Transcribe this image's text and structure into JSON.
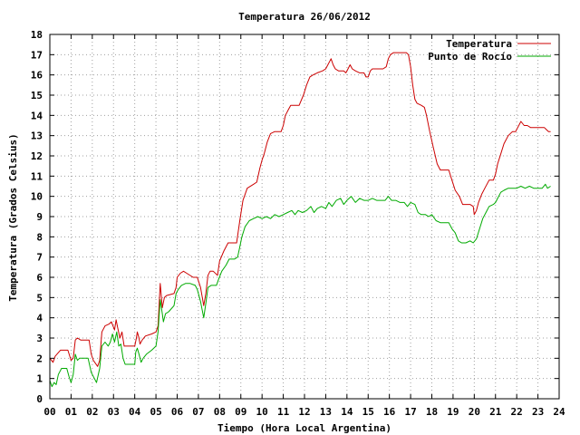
{
  "chart_data": {
    "type": "line",
    "title": "Temperatura 26/06/2012",
    "xlabel": "Tiempo (Hora Local Argentina)",
    "ylabel": "Temperatura (Grados Celsius)",
    "xlim": [
      0,
      24
    ],
    "ylim": [
      0,
      18
    ],
    "x_ticks": [
      "00",
      "01",
      "02",
      "03",
      "04",
      "05",
      "06",
      "07",
      "08",
      "09",
      "10",
      "11",
      "12",
      "13",
      "14",
      "15",
      "16",
      "17",
      "18",
      "19",
      "20",
      "21",
      "22",
      "23",
      "24"
    ],
    "y_ticks": [
      "0",
      "1",
      "2",
      "3",
      "4",
      "5",
      "6",
      "7",
      "8",
      "9",
      "10",
      "11",
      "12",
      "13",
      "14",
      "15",
      "16",
      "17",
      "18"
    ],
    "grid": true,
    "legend_position": "top-right",
    "series": [
      {
        "name": "Temperatura",
        "color": "#cc0000",
        "points": [
          [
            0.0,
            2.0
          ],
          [
            0.15,
            1.8
          ],
          [
            0.25,
            2.1
          ],
          [
            0.5,
            2.4
          ],
          [
            0.85,
            2.4
          ],
          [
            1.0,
            1.9
          ],
          [
            1.1,
            2.0
          ],
          [
            1.2,
            2.9
          ],
          [
            1.3,
            3.0
          ],
          [
            1.45,
            2.9
          ],
          [
            1.85,
            2.9
          ],
          [
            1.95,
            2.2
          ],
          [
            2.05,
            1.9
          ],
          [
            2.25,
            1.6
          ],
          [
            2.35,
            1.9
          ],
          [
            2.45,
            3.3
          ],
          [
            2.6,
            3.6
          ],
          [
            2.8,
            3.7
          ],
          [
            2.9,
            3.8
          ],
          [
            3.05,
            3.4
          ],
          [
            3.12,
            3.9
          ],
          [
            3.2,
            3.5
          ],
          [
            3.3,
            3.0
          ],
          [
            3.4,
            3.3
          ],
          [
            3.5,
            2.6
          ],
          [
            3.75,
            2.6
          ],
          [
            4.0,
            2.6
          ],
          [
            4.08,
            3.0
          ],
          [
            4.12,
            3.3
          ],
          [
            4.2,
            3.0
          ],
          [
            4.25,
            2.7
          ],
          [
            4.35,
            2.9
          ],
          [
            4.5,
            3.1
          ],
          [
            4.8,
            3.2
          ],
          [
            5.0,
            3.3
          ],
          [
            5.1,
            3.6
          ],
          [
            5.2,
            5.7
          ],
          [
            5.3,
            4.5
          ],
          [
            5.4,
            5.0
          ],
          [
            5.5,
            5.1
          ],
          [
            5.85,
            5.2
          ],
          [
            5.95,
            5.5
          ],
          [
            6.0,
            6.0
          ],
          [
            6.15,
            6.2
          ],
          [
            6.3,
            6.3
          ],
          [
            6.45,
            6.2
          ],
          [
            6.75,
            6.0
          ],
          [
            6.95,
            6.0
          ],
          [
            7.1,
            5.5
          ],
          [
            7.25,
            4.6
          ],
          [
            7.35,
            5.2
          ],
          [
            7.45,
            6.1
          ],
          [
            7.55,
            6.3
          ],
          [
            7.7,
            6.3
          ],
          [
            7.9,
            6.1
          ],
          [
            8.0,
            6.8
          ],
          [
            8.2,
            7.3
          ],
          [
            8.4,
            7.7
          ],
          [
            8.6,
            7.7
          ],
          [
            8.8,
            7.7
          ],
          [
            8.95,
            8.8
          ],
          [
            9.1,
            9.8
          ],
          [
            9.3,
            10.4
          ],
          [
            9.6,
            10.6
          ],
          [
            9.75,
            10.7
          ],
          [
            9.9,
            11.4
          ],
          [
            10.0,
            11.8
          ],
          [
            10.1,
            12.1
          ],
          [
            10.25,
            12.7
          ],
          [
            10.4,
            13.1
          ],
          [
            10.6,
            13.2
          ],
          [
            10.9,
            13.2
          ],
          [
            11.0,
            13.5
          ],
          [
            11.1,
            14.0
          ],
          [
            11.25,
            14.3
          ],
          [
            11.35,
            14.5
          ],
          [
            11.5,
            14.5
          ],
          [
            11.75,
            14.5
          ],
          [
            11.95,
            15.0
          ],
          [
            12.1,
            15.5
          ],
          [
            12.25,
            15.9
          ],
          [
            12.4,
            16.0
          ],
          [
            12.6,
            16.1
          ],
          [
            12.85,
            16.2
          ],
          [
            13.0,
            16.3
          ],
          [
            13.1,
            16.5
          ],
          [
            13.25,
            16.8
          ],
          [
            13.35,
            16.5
          ],
          [
            13.45,
            16.3
          ],
          [
            13.6,
            16.2
          ],
          [
            13.85,
            16.2
          ],
          [
            13.95,
            16.1
          ],
          [
            14.05,
            16.3
          ],
          [
            14.15,
            16.5
          ],
          [
            14.25,
            16.3
          ],
          [
            14.4,
            16.2
          ],
          [
            14.6,
            16.1
          ],
          [
            14.8,
            16.1
          ],
          [
            14.9,
            15.9
          ],
          [
            15.0,
            15.9
          ],
          [
            15.1,
            16.2
          ],
          [
            15.2,
            16.3
          ],
          [
            15.4,
            16.3
          ],
          [
            15.7,
            16.3
          ],
          [
            15.85,
            16.4
          ],
          [
            15.95,
            16.8
          ],
          [
            16.05,
            17.0
          ],
          [
            16.2,
            17.1
          ],
          [
            16.5,
            17.1
          ],
          [
            16.8,
            17.1
          ],
          [
            16.9,
            17.0
          ],
          [
            17.0,
            16.4
          ],
          [
            17.1,
            15.5
          ],
          [
            17.2,
            14.8
          ],
          [
            17.3,
            14.6
          ],
          [
            17.5,
            14.5
          ],
          [
            17.65,
            14.4
          ],
          [
            17.75,
            14.0
          ],
          [
            17.9,
            13.2
          ],
          [
            18.05,
            12.5
          ],
          [
            18.25,
            11.6
          ],
          [
            18.4,
            11.3
          ],
          [
            18.6,
            11.3
          ],
          [
            18.8,
            11.3
          ],
          [
            18.95,
            10.8
          ],
          [
            19.1,
            10.3
          ],
          [
            19.3,
            10.0
          ],
          [
            19.45,
            9.6
          ],
          [
            19.6,
            9.6
          ],
          [
            19.8,
            9.6
          ],
          [
            19.95,
            9.5
          ],
          [
            20.0,
            9.1
          ],
          [
            20.1,
            9.3
          ],
          [
            20.2,
            9.7
          ],
          [
            20.35,
            10.1
          ],
          [
            20.5,
            10.4
          ],
          [
            20.7,
            10.8
          ],
          [
            20.9,
            10.8
          ],
          [
            21.0,
            11.1
          ],
          [
            21.1,
            11.6
          ],
          [
            21.25,
            12.1
          ],
          [
            21.4,
            12.6
          ],
          [
            21.6,
            13.0
          ],
          [
            21.8,
            13.2
          ],
          [
            21.95,
            13.2
          ],
          [
            22.05,
            13.4
          ],
          [
            22.2,
            13.7
          ],
          [
            22.35,
            13.5
          ],
          [
            22.5,
            13.5
          ],
          [
            22.65,
            13.4
          ],
          [
            22.9,
            13.4
          ],
          [
            23.1,
            13.4
          ],
          [
            23.3,
            13.4
          ],
          [
            23.4,
            13.3
          ],
          [
            23.5,
            13.2
          ],
          [
            23.6,
            13.2
          ]
        ]
      },
      {
        "name": "Punto de Rocío",
        "color": "#00aa00",
        "points": [
          [
            0.0,
            0.9
          ],
          [
            0.1,
            0.6
          ],
          [
            0.2,
            0.8
          ],
          [
            0.3,
            0.7
          ],
          [
            0.4,
            1.2
          ],
          [
            0.55,
            1.5
          ],
          [
            0.8,
            1.5
          ],
          [
            0.9,
            1.1
          ],
          [
            1.0,
            0.8
          ],
          [
            1.1,
            1.2
          ],
          [
            1.2,
            2.2
          ],
          [
            1.3,
            1.9
          ],
          [
            1.4,
            2.0
          ],
          [
            1.6,
            2.0
          ],
          [
            1.8,
            2.0
          ],
          [
            1.95,
            1.3
          ],
          [
            2.1,
            1.0
          ],
          [
            2.2,
            0.8
          ],
          [
            2.35,
            1.5
          ],
          [
            2.45,
            2.6
          ],
          [
            2.6,
            2.8
          ],
          [
            2.75,
            2.6
          ],
          [
            2.85,
            2.8
          ],
          [
            2.95,
            3.2
          ],
          [
            3.05,
            2.8
          ],
          [
            3.15,
            3.3
          ],
          [
            3.25,
            2.6
          ],
          [
            3.35,
            2.7
          ],
          [
            3.45,
            2.0
          ],
          [
            3.55,
            1.7
          ],
          [
            3.8,
            1.7
          ],
          [
            4.0,
            1.7
          ],
          [
            4.05,
            2.3
          ],
          [
            4.12,
            2.5
          ],
          [
            4.2,
            2.2
          ],
          [
            4.3,
            1.8
          ],
          [
            4.4,
            2.0
          ],
          [
            4.55,
            2.2
          ],
          [
            4.8,
            2.4
          ],
          [
            5.0,
            2.6
          ],
          [
            5.1,
            3.3
          ],
          [
            5.2,
            4.9
          ],
          [
            5.3,
            4.2
          ],
          [
            5.35,
            3.8
          ],
          [
            5.45,
            4.2
          ],
          [
            5.6,
            4.3
          ],
          [
            5.85,
            4.6
          ],
          [
            5.95,
            5.2
          ],
          [
            6.05,
            5.4
          ],
          [
            6.2,
            5.6
          ],
          [
            6.4,
            5.7
          ],
          [
            6.6,
            5.7
          ],
          [
            6.85,
            5.6
          ],
          [
            6.95,
            5.4
          ],
          [
            7.1,
            4.8
          ],
          [
            7.25,
            4.0
          ],
          [
            7.35,
            4.7
          ],
          [
            7.45,
            5.5
          ],
          [
            7.6,
            5.6
          ],
          [
            7.85,
            5.6
          ],
          [
            7.95,
            5.9
          ],
          [
            8.1,
            6.3
          ],
          [
            8.3,
            6.6
          ],
          [
            8.45,
            6.9
          ],
          [
            8.7,
            6.9
          ],
          [
            8.85,
            7.0
          ],
          [
            8.95,
            7.5
          ],
          [
            9.05,
            8.0
          ],
          [
            9.2,
            8.5
          ],
          [
            9.4,
            8.8
          ],
          [
            9.6,
            8.9
          ],
          [
            9.8,
            9.0
          ],
          [
            10.0,
            8.9
          ],
          [
            10.2,
            9.0
          ],
          [
            10.4,
            8.9
          ],
          [
            10.6,
            9.1
          ],
          [
            10.8,
            9.0
          ],
          [
            11.0,
            9.1
          ],
          [
            11.2,
            9.2
          ],
          [
            11.4,
            9.3
          ],
          [
            11.55,
            9.1
          ],
          [
            11.7,
            9.3
          ],
          [
            11.9,
            9.2
          ],
          [
            12.1,
            9.3
          ],
          [
            12.3,
            9.5
          ],
          [
            12.45,
            9.2
          ],
          [
            12.6,
            9.4
          ],
          [
            12.8,
            9.5
          ],
          [
            13.0,
            9.4
          ],
          [
            13.15,
            9.7
          ],
          [
            13.3,
            9.5
          ],
          [
            13.5,
            9.8
          ],
          [
            13.7,
            9.9
          ],
          [
            13.85,
            9.6
          ],
          [
            14.0,
            9.8
          ],
          [
            14.2,
            10.0
          ],
          [
            14.4,
            9.7
          ],
          [
            14.6,
            9.9
          ],
          [
            14.8,
            9.8
          ],
          [
            15.0,
            9.8
          ],
          [
            15.2,
            9.9
          ],
          [
            15.4,
            9.8
          ],
          [
            15.6,
            9.8
          ],
          [
            15.8,
            9.8
          ],
          [
            15.95,
            10.0
          ],
          [
            16.1,
            9.8
          ],
          [
            16.3,
            9.8
          ],
          [
            16.5,
            9.7
          ],
          [
            16.7,
            9.7
          ],
          [
            16.85,
            9.5
          ],
          [
            17.0,
            9.7
          ],
          [
            17.2,
            9.6
          ],
          [
            17.35,
            9.2
          ],
          [
            17.5,
            9.1
          ],
          [
            17.7,
            9.1
          ],
          [
            17.85,
            9.0
          ],
          [
            18.0,
            9.1
          ],
          [
            18.2,
            8.8
          ],
          [
            18.4,
            8.7
          ],
          [
            18.6,
            8.7
          ],
          [
            18.8,
            8.7
          ],
          [
            18.95,
            8.4
          ],
          [
            19.1,
            8.2
          ],
          [
            19.25,
            7.8
          ],
          [
            19.4,
            7.7
          ],
          [
            19.6,
            7.7
          ],
          [
            19.8,
            7.8
          ],
          [
            19.95,
            7.7
          ],
          [
            20.1,
            7.9
          ],
          [
            20.25,
            8.4
          ],
          [
            20.4,
            8.9
          ],
          [
            20.55,
            9.2
          ],
          [
            20.7,
            9.5
          ],
          [
            20.9,
            9.6
          ],
          [
            21.0,
            9.7
          ],
          [
            21.1,
            9.9
          ],
          [
            21.25,
            10.2
          ],
          [
            21.4,
            10.3
          ],
          [
            21.6,
            10.4
          ],
          [
            21.8,
            10.4
          ],
          [
            22.0,
            10.4
          ],
          [
            22.2,
            10.5
          ],
          [
            22.4,
            10.4
          ],
          [
            22.6,
            10.5
          ],
          [
            22.8,
            10.4
          ],
          [
            23.0,
            10.4
          ],
          [
            23.2,
            10.4
          ],
          [
            23.35,
            10.6
          ],
          [
            23.45,
            10.4
          ],
          [
            23.6,
            10.5
          ]
        ]
      }
    ]
  }
}
